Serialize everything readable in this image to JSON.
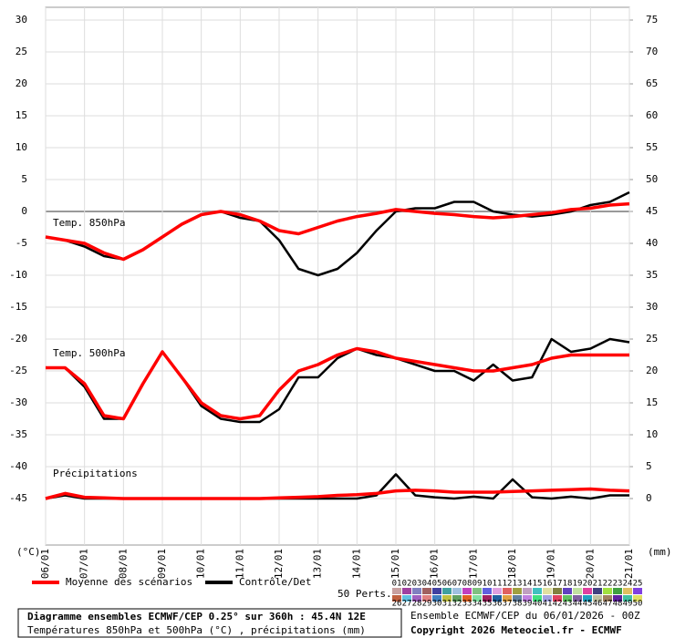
{
  "chart_data": {
    "type": "line",
    "x": [
      0,
      12,
      24,
      36,
      48,
      60,
      72,
      84,
      96,
      108,
      120,
      132,
      144,
      156,
      168,
      180,
      192,
      204,
      216,
      228,
      240,
      252,
      264,
      276,
      288,
      300,
      312,
      324,
      336,
      348,
      360
    ],
    "xlim": [
      0,
      360
    ],
    "xticks": [
      {
        "value": 0,
        "label": "06/01"
      },
      {
        "value": 24,
        "label": "07/01"
      },
      {
        "value": 48,
        "label": "08/01"
      },
      {
        "value": 72,
        "label": "09/01"
      },
      {
        "value": 96,
        "label": "10/01"
      },
      {
        "value": 120,
        "label": "11/01"
      },
      {
        "value": 144,
        "label": "12/01"
      },
      {
        "value": 168,
        "label": "13/01"
      },
      {
        "value": 192,
        "label": "14/01"
      },
      {
        "value": 216,
        "label": "15/01"
      },
      {
        "value": 240,
        "label": "16/01"
      },
      {
        "value": 264,
        "label": "17/01"
      },
      {
        "value": 288,
        "label": "18/01"
      },
      {
        "value": 312,
        "label": "19/01"
      },
      {
        "value": 336,
        "label": "20/01"
      },
      {
        "value": 360,
        "label": "21/01"
      }
    ],
    "ylim": [
      -45,
      30
    ],
    "yticks": [
      30,
      25,
      20,
      15,
      10,
      5,
      0,
      -5,
      -10,
      -15,
      -20,
      -25,
      -30,
      -35,
      -40,
      -45
    ],
    "y2lim": [
      0,
      75
    ],
    "y2ticks": [
      75,
      70,
      65,
      60,
      55,
      50,
      45,
      40,
      35,
      30,
      25,
      20,
      15,
      10,
      5,
      0
    ],
    "ylabel": "(°C)",
    "y2label": "(mm)",
    "grid": true,
    "legend": [
      {
        "name": "Moyenne des scénarios",
        "color": "#ff0000"
      },
      {
        "name": "Contrôle/Det",
        "color": "#000000"
      }
    ],
    "groups": [
      {
        "label": "Temp. 850hPa",
        "axis": "y",
        "mean": [
          -4,
          -4.5,
          -5,
          -6.5,
          -7.5,
          -6,
          -4,
          -2,
          -0.5,
          0,
          -0.5,
          -1.5,
          -3,
          -3.5,
          -2.5,
          -1.5,
          -0.8,
          -0.3,
          0.3,
          0,
          -0.3,
          -0.5,
          -0.8,
          -1,
          -0.8,
          -0.5,
          -0.2,
          0.3,
          0.5,
          1,
          1.2
        ],
        "control": [
          -4,
          -4.5,
          -5.5,
          -7,
          -7.5,
          -6,
          -4,
          -2,
          -0.5,
          0,
          -1,
          -1.5,
          -4.5,
          -9,
          -10,
          -9,
          -6.5,
          -3,
          0,
          0.5,
          0.5,
          1.5,
          1.5,
          0,
          -0.5,
          -0.8,
          -0.5,
          0,
          1,
          1.5,
          3
        ]
      },
      {
        "label": "Temp. 500hPa",
        "axis": "y",
        "mean": [
          -24.5,
          -24.5,
          -27,
          -32,
          -32.5,
          -27,
          -22,
          -26,
          -30,
          -32,
          -32.5,
          -32,
          -28,
          -25,
          -24,
          -22.5,
          -21.5,
          -22,
          -23,
          -23.5,
          -24,
          -24.5,
          -25,
          -25,
          -24.5,
          -24,
          -23,
          -22.5,
          -22.5,
          -22.5,
          -22.5
        ],
        "control": [
          -24.5,
          -24.5,
          -27.5,
          -32.5,
          -32.5,
          -27,
          -22,
          -26,
          -30.5,
          -32.5,
          -33,
          -33,
          -31,
          -26,
          -26,
          -23,
          -21.5,
          -22.5,
          -23,
          -24,
          -25,
          -25,
          -26.5,
          -24,
          -26.5,
          -26,
          -20,
          -22,
          -21.5,
          -20,
          -20.5
        ]
      },
      {
        "label": "Précipitations",
        "axis": "y2",
        "mean": [
          0,
          0.8,
          0.2,
          0.1,
          0,
          0,
          0,
          0,
          0,
          0,
          0,
          0,
          0.1,
          0.2,
          0.3,
          0.5,
          0.6,
          0.8,
          1.2,
          1.3,
          1.2,
          1,
          1,
          1,
          1.1,
          1.2,
          1.3,
          1.4,
          1.5,
          1.3,
          1.2
        ],
        "control": [
          0,
          0.5,
          0,
          0,
          0,
          0,
          0,
          0,
          0,
          0,
          0,
          0,
          0,
          0,
          0,
          0,
          0,
          0.5,
          3.8,
          0.5,
          0.2,
          0,
          0.3,
          0,
          3,
          0.2,
          0,
          0.3,
          0,
          0.5,
          0.5
        ]
      }
    ],
    "perturbations": {
      "label": "50 Perts.",
      "members": [
        {
          "name": "01",
          "color": "#c8a0a0"
        },
        {
          "name": "02",
          "color": "#a040a0"
        },
        {
          "name": "03",
          "color": "#8080c0"
        },
        {
          "name": "04",
          "color": "#a06060"
        },
        {
          "name": "05",
          "color": "#4040a0"
        },
        {
          "name": "06",
          "color": "#40a0a0"
        },
        {
          "name": "07",
          "color": "#a0c0e0"
        },
        {
          "name": "08",
          "color": "#c040c0"
        },
        {
          "name": "09",
          "color": "#80c080"
        },
        {
          "name": "10",
          "color": "#6060e0"
        },
        {
          "name": "11",
          "color": "#e0a0e0"
        },
        {
          "name": "12",
          "color": "#e06060"
        },
        {
          "name": "13",
          "color": "#a0a040"
        },
        {
          "name": "14",
          "color": "#c0a0c0"
        },
        {
          "name": "15",
          "color": "#40c0c0"
        },
        {
          "name": "16",
          "color": "#e0e0a0"
        },
        {
          "name": "17",
          "color": "#808040"
        },
        {
          "name": "18",
          "color": "#6040c0"
        },
        {
          "name": "19",
          "color": "#c0e0a0"
        },
        {
          "name": "20",
          "color": "#e040a0"
        },
        {
          "name": "21",
          "color": "#404080"
        },
        {
          "name": "22",
          "color": "#a0e040"
        },
        {
          "name": "23",
          "color": "#40a040"
        },
        {
          "name": "24",
          "color": "#e0c060"
        },
        {
          "name": "25",
          "color": "#8040e0"
        },
        {
          "name": "26",
          "color": "#c06040"
        },
        {
          "name": "27",
          "color": "#60c0e0"
        },
        {
          "name": "28",
          "color": "#a060c0"
        },
        {
          "name": "29",
          "color": "#e08080"
        },
        {
          "name": "30",
          "color": "#4080c0"
        },
        {
          "name": "31",
          "color": "#c0c040"
        },
        {
          "name": "32",
          "color": "#60a060"
        },
        {
          "name": "33",
          "color": "#e06020"
        },
        {
          "name": "34",
          "color": "#80e0a0"
        },
        {
          "name": "35",
          "color": "#a02060"
        },
        {
          "name": "36",
          "color": "#2060a0"
        },
        {
          "name": "37",
          "color": "#e0a040"
        },
        {
          "name": "38",
          "color": "#6080a0"
        },
        {
          "name": "39",
          "color": "#c080e0"
        },
        {
          "name": "40",
          "color": "#40e080"
        },
        {
          "name": "41",
          "color": "#a0a0e0"
        },
        {
          "name": "42",
          "color": "#e04060"
        },
        {
          "name": "43",
          "color": "#60c060"
        },
        {
          "name": "44",
          "color": "#8060a0"
        },
        {
          "name": "45",
          "color": "#20a0c0"
        },
        {
          "name": "46",
          "color": "#c0c0a0"
        },
        {
          "name": "47",
          "color": "#a08060"
        },
        {
          "name": "48",
          "color": "#6020a0"
        },
        {
          "name": "49",
          "color": "#40c0a0"
        },
        {
          "name": "50",
          "color": "#e0e060"
        }
      ]
    },
    "footer": {
      "title": "Diagramme ensembles ECMWF/CEP 0.25° sur 360h : 45.4N 12E",
      "subtitle": "Températures 850hPa et 500hPa (°C) , précipitations (mm)",
      "run": "Ensemble ECMWF/CEP du 06/01/2026 - 00Z",
      "copyright": "Copyright 2026 Meteociel.fr - ECMWF"
    }
  }
}
